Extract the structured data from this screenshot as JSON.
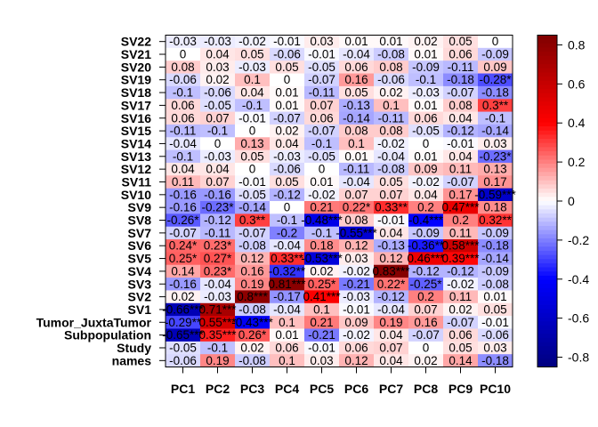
{
  "chart_data": {
    "type": "heatmap",
    "columns": [
      "PC1",
      "PC2",
      "PC3",
      "PC4",
      "PC5",
      "PC6",
      "PC7",
      "PC8",
      "PC9",
      "PC10"
    ],
    "rows": [
      {
        "label": "SV22",
        "values": [
          -0.03,
          -0.03,
          -0.02,
          -0.01,
          0.03,
          0.01,
          0.01,
          0.02,
          0.05,
          0
        ],
        "text": [
          "-0.03",
          "-0.03",
          "-0.02",
          "-0.01",
          "0.03",
          "0.01",
          "0.01",
          "0.02",
          "0.05",
          "0"
        ]
      },
      {
        "label": "SV21",
        "values": [
          0,
          0.04,
          0.05,
          -0.06,
          -0.01,
          -0.04,
          -0.08,
          0.01,
          0.06,
          -0.09
        ],
        "text": [
          "0",
          "0.04",
          "0.05",
          "-0.06",
          "-0.01",
          "-0.04",
          "-0.08",
          "0.01",
          "0.06",
          "-0.09"
        ]
      },
      {
        "label": "SV20",
        "values": [
          0.08,
          0.03,
          -0.03,
          0.05,
          -0.05,
          0.06,
          0.08,
          -0.09,
          -0.11,
          0.09
        ],
        "text": [
          "0.08",
          "0.03",
          "-0.03",
          "0.05",
          "-0.05",
          "0.06",
          "0.08",
          "-0.09",
          "-0.11",
          "0.09"
        ]
      },
      {
        "label": "SV19",
        "values": [
          -0.06,
          0.02,
          0.1,
          0,
          -0.07,
          0.16,
          -0.06,
          -0.1,
          -0.18,
          -0.28
        ],
        "text": [
          "-0.06",
          "0.02",
          "0.1",
          "0",
          "-0.07",
          "0.16",
          "-0.06",
          "-0.1",
          "-0.18",
          "-0.28*"
        ]
      },
      {
        "label": "SV18",
        "values": [
          -0.1,
          -0.06,
          0.04,
          0.01,
          -0.11,
          0.05,
          0.02,
          -0.03,
          -0.07,
          -0.18
        ],
        "text": [
          "-0.1",
          "-0.06",
          "0.04",
          "0.01",
          "-0.11",
          "0.05",
          "0.02",
          "-0.03",
          "-0.07",
          "-0.18"
        ]
      },
      {
        "label": "SV17",
        "values": [
          0.06,
          -0.05,
          -0.1,
          0.01,
          0.07,
          -0.13,
          0.1,
          0.01,
          0.08,
          0.3
        ],
        "text": [
          "0.06",
          "-0.05",
          "-0.1",
          "0.01",
          "0.07",
          "-0.13",
          "0.1",
          "0.01",
          "0.08",
          "0.3**"
        ]
      },
      {
        "label": "SV16",
        "values": [
          0.06,
          0.07,
          -0.01,
          -0.07,
          0.06,
          -0.14,
          -0.11,
          0.06,
          0.04,
          -0.1
        ],
        "text": [
          "0.06",
          "0.07",
          "-0.01",
          "-0.07",
          "0.06",
          "-0.14",
          "-0.11",
          "0.06",
          "0.04",
          "-0.1"
        ]
      },
      {
        "label": "SV15",
        "values": [
          -0.11,
          -0.1,
          0,
          0.02,
          -0.07,
          0.08,
          0.08,
          -0.05,
          -0.12,
          -0.14
        ],
        "text": [
          "-0.11",
          "-0.1",
          "0",
          "0.02",
          "-0.07",
          "0.08",
          "0.08",
          "-0.05",
          "-0.12",
          "-0.14"
        ]
      },
      {
        "label": "SV14",
        "values": [
          -0.04,
          0,
          0.13,
          0.04,
          -0.1,
          0.1,
          -0.02,
          0,
          -0.01,
          0.03
        ],
        "text": [
          "-0.04",
          "0",
          "0.13",
          "0.04",
          "-0.1",
          "0.1",
          "-0.02",
          "0",
          "-0.01",
          "0.03"
        ]
      },
      {
        "label": "SV13",
        "values": [
          -0.1,
          -0.03,
          0.05,
          -0.03,
          -0.05,
          0.01,
          -0.04,
          0.01,
          0.04,
          -0.23
        ],
        "text": [
          "-0.1",
          "-0.03",
          "0.05",
          "-0.03",
          "-0.05",
          "0.01",
          "-0.04",
          "0.01",
          "0.04",
          "-0.23*"
        ]
      },
      {
        "label": "SV12",
        "values": [
          0.04,
          0.04,
          0,
          -0.06,
          0,
          -0.11,
          -0.08,
          0.09,
          0.11,
          0.13
        ],
        "text": [
          "0.04",
          "0.04",
          "0",
          "-0.06",
          "0",
          "-0.11",
          "-0.08",
          "0.09",
          "0.11",
          "0.13"
        ]
      },
      {
        "label": "SV11",
        "values": [
          0.11,
          0.07,
          -0.01,
          0.05,
          0.01,
          -0.04,
          0.05,
          -0.02,
          -0.07,
          0.17
        ],
        "text": [
          "0.11",
          "0.07",
          "-0.01",
          "0.05",
          "0.01",
          "-0.04",
          "0.05",
          "-0.02",
          "-0.07",
          "0.17"
        ]
      },
      {
        "label": "SV10",
        "values": [
          -0.16,
          -0.16,
          -0.05,
          -0.12,
          -0.02,
          0.07,
          0.07,
          0.04,
          0.17,
          -0.59
        ],
        "text": [
          "-0.16",
          "-0.16",
          "-0.05",
          "-0.12",
          "-0.02",
          "0.07",
          "0.07",
          "0.04",
          "0.17",
          "-0.59***"
        ]
      },
      {
        "label": "SV9",
        "values": [
          -0.16,
          -0.23,
          -0.14,
          0,
          0.21,
          0.22,
          0.33,
          0.2,
          0.47,
          0.18
        ],
        "text": [
          "-0.16",
          "-0.23*",
          "-0.14",
          "0",
          "0.21",
          "0.22*",
          "0.33**",
          "0.2",
          "0.47***",
          "0.18"
        ]
      },
      {
        "label": "SV8",
        "values": [
          -0.26,
          -0.12,
          0.3,
          -0.1,
          -0.48,
          0.08,
          -0.01,
          -0.4,
          0.2,
          0.32
        ],
        "text": [
          "-0.26*",
          "-0.12",
          "0.3**",
          "-0.1",
          "-0.48***",
          "0.08",
          "-0.01",
          "-0.4***",
          "0.2",
          "0.32**"
        ]
      },
      {
        "label": "SV7",
        "values": [
          -0.07,
          -0.11,
          -0.07,
          -0.2,
          -0.1,
          -0.55,
          0.04,
          -0.09,
          0.11,
          -0.09
        ],
        "text": [
          "-0.07",
          "-0.11",
          "-0.07",
          "-0.2",
          "-0.1",
          "-0.55***",
          "0.04",
          "-0.09",
          "0.11",
          "-0.09"
        ]
      },
      {
        "label": "SV6",
        "values": [
          0.24,
          0.23,
          -0.08,
          -0.04,
          0.18,
          0.12,
          -0.13,
          -0.36,
          0.58,
          -0.18
        ],
        "text": [
          "0.24*",
          "0.23*",
          "-0.08",
          "-0.04",
          "0.18",
          "0.12",
          "-0.13",
          "-0.36**",
          "0.58***",
          "-0.18"
        ]
      },
      {
        "label": "SV5",
        "values": [
          0.25,
          0.27,
          0.12,
          0.33,
          -0.53,
          0.03,
          0.12,
          0.46,
          0.39,
          -0.14
        ],
        "text": [
          "0.25*",
          "0.27*",
          "0.12",
          "0.33**",
          "-0.53***",
          "0.03",
          "0.12",
          "0.46***",
          "0.39***",
          "-0.14"
        ]
      },
      {
        "label": "SV4",
        "values": [
          0.14,
          0.23,
          0.16,
          -0.32,
          0.02,
          -0.02,
          0.83,
          -0.12,
          -0.12,
          -0.09
        ],
        "text": [
          "0.14",
          "0.23*",
          "0.16",
          "-0.32**",
          "0.02",
          "-0.02",
          "0.83***",
          "-0.12",
          "-0.12",
          "-0.09"
        ]
      },
      {
        "label": "SV3",
        "values": [
          -0.16,
          -0.04,
          0.19,
          0.81,
          0.25,
          -0.21,
          0.22,
          -0.25,
          -0.02,
          -0.08
        ],
        "text": [
          "-0.16",
          "-0.04",
          "0.19",
          "0.81***",
          "0.25*",
          "-0.21",
          "0.22*",
          "-0.25*",
          "-0.02",
          "-0.08"
        ]
      },
      {
        "label": "SV2",
        "values": [
          0.02,
          -0.03,
          0.8,
          -0.17,
          0.41,
          -0.03,
          -0.12,
          0.2,
          0.11,
          0.01
        ],
        "text": [
          "0.02",
          "-0.03",
          "0.8***",
          "-0.17",
          "0.41***",
          "-0.03",
          "-0.12",
          "0.2",
          "0.11",
          "0.01"
        ]
      },
      {
        "label": "SV1",
        "values": [
          -0.66,
          0.71,
          -0.08,
          -0.04,
          0.1,
          -0.01,
          -0.04,
          0.07,
          0.02,
          0.05
        ],
        "text": [
          "-0.66***",
          "0.71***",
          "-0.08",
          "-0.04",
          "0.1",
          "-0.01",
          "-0.04",
          "0.07",
          "0.02",
          "0.05"
        ]
      },
      {
        "label": "Tumor_JuxtaTumor",
        "values": [
          -0.29,
          0.55,
          -0.43,
          0.1,
          0.21,
          0.09,
          0.19,
          0.16,
          -0.07,
          -0.01
        ],
        "text": [
          "-0.29**",
          "0.55***",
          "-0.43***",
          "0.1",
          "0.21",
          "0.09",
          "0.19",
          "0.16",
          "-0.07",
          "-0.01"
        ]
      },
      {
        "label": "Subpopulation",
        "values": [
          -0.65,
          0.35,
          0.26,
          0.01,
          -0.21,
          -0.02,
          0.04,
          -0.07,
          0.06,
          -0.06
        ],
        "text": [
          "-0.65***",
          "0.35***",
          "0.26*",
          "0.01",
          "-0.21",
          "-0.02",
          "0.04",
          "-0.07",
          "0.06",
          "-0.06"
        ]
      },
      {
        "label": "Study",
        "values": [
          -0.05,
          -0.1,
          0.02,
          0.06,
          -0.01,
          0.06,
          0.07,
          0,
          0.05,
          0.03
        ],
        "text": [
          "-0.05",
          "-0.1",
          "0.02",
          "0.06",
          "-0.01",
          "0.06",
          "0.07",
          "0",
          "0.05",
          "0.03"
        ]
      },
      {
        "label": "names",
        "values": [
          -0.06,
          0.19,
          -0.08,
          0.1,
          0.03,
          0.12,
          0.04,
          0.02,
          0.14,
          -0.18
        ],
        "text": [
          "-0.06",
          "0.19",
          "-0.08",
          "0.1",
          "0.03",
          "0.12",
          "0.04",
          "0.02",
          "0.14",
          "-0.18"
        ]
      }
    ],
    "legend": {
      "range": [
        -0.85,
        0.85
      ],
      "ticks": [
        0.8,
        0.6,
        0.4,
        0.2,
        0,
        -0.2,
        -0.4,
        -0.6,
        -0.8
      ],
      "tick_labels": [
        "0.8",
        "0.6",
        "0.4",
        "0.2",
        "0",
        "-0.2",
        "-0.4",
        "-0.6",
        "-0.8"
      ],
      "placement": "right"
    },
    "colorscale": {
      "low": "#00007f",
      "mid_low": "#0000ff",
      "mid": "#ffffff",
      "mid_high": "#ff0000",
      "high": "#7f0000"
    }
  }
}
